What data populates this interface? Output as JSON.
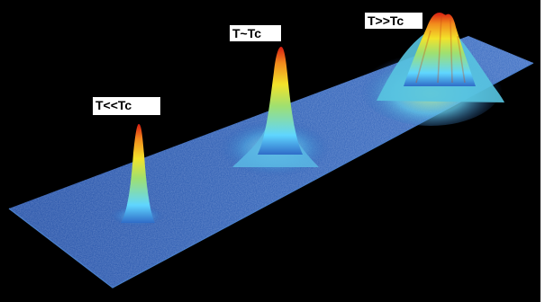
{
  "labels": [
    {
      "text": "T<<Tc"
    },
    {
      "text": "T~Tc"
    },
    {
      "text": "T>>Tc"
    }
  ],
  "colors": {
    "background": "#000000",
    "surface": "#1f4fa8",
    "surface_light": "#3f78c8",
    "peak_cyan": "#5fd6ff",
    "peak_green": "#9fe070",
    "peak_yellow": "#f2e32a",
    "peak_orange": "#f28a1c",
    "peak_red": "#d81c12"
  }
}
